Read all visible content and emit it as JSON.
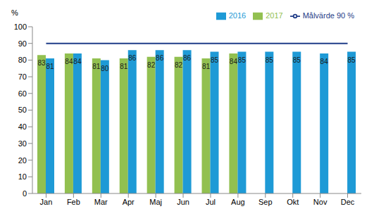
{
  "chart_data": {
    "type": "bar",
    "y_label": "%",
    "categories": [
      "Jan",
      "Feb",
      "Mar",
      "Apr",
      "Maj",
      "Jun",
      "Jul",
      "Aug",
      "Sep",
      "Okt",
      "Nov",
      "Dec"
    ],
    "series": [
      {
        "name": "2017",
        "color": "#92C050",
        "values": [
          83,
          84,
          81,
          81,
          82,
          82,
          81,
          84,
          null,
          null,
          null,
          null
        ]
      },
      {
        "name": "2016",
        "color": "#1E9AD6",
        "values": [
          81,
          84,
          80,
          86,
          86,
          86,
          85,
          85,
          85,
          85,
          84,
          85
        ]
      },
      {
        "name": "Målvärde 90 %",
        "type": "line",
        "color": "#1F3C88",
        "marker": "none",
        "line_style": "solid",
        "values": [
          90,
          90,
          90,
          90,
          90,
          90,
          90,
          90,
          90,
          90,
          90,
          90
        ]
      }
    ],
    "ylim": [
      0,
      100
    ],
    "yticks": [
      0,
      10,
      20,
      30,
      40,
      50,
      60,
      70,
      80,
      90,
      100
    ],
    "grid": false,
    "legend": "top-right",
    "data_labels": true
  }
}
